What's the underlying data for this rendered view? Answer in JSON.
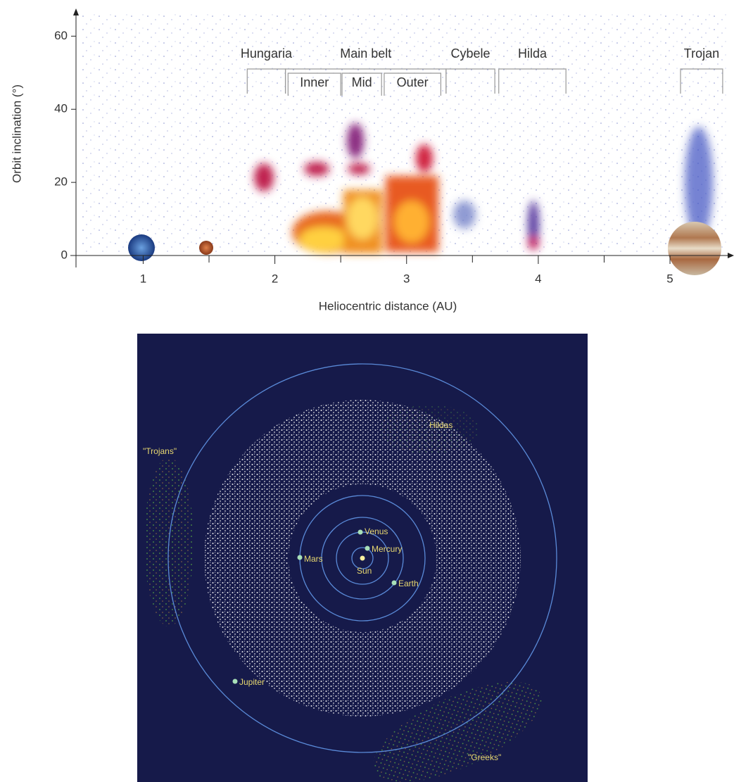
{
  "chart_data": {
    "type": "scatter",
    "ylabel": "Orbit inclination (°)",
    "xlabel": "Heliocentric distance (AU)",
    "xlim": [
      0.49,
      5.47
    ],
    "ylim": [
      0,
      67
    ],
    "xticks": [
      1,
      2,
      3,
      4,
      5
    ],
    "xminorticks": [
      1.5,
      2.5,
      3.5,
      4.5
    ],
    "yticks": [
      0,
      20,
      40,
      60
    ],
    "color": "#2a3aa0",
    "regions": [
      {
        "name": "Hungaria",
        "x": [
          1.79,
          2.08
        ]
      },
      {
        "name": "Main belt",
        "x": [
          2.08,
          3.3
        ],
        "subregions": [
          {
            "name": "Inner",
            "x": [
              2.1,
              2.5
            ]
          },
          {
            "name": "Mid",
            "x": [
              2.51,
              2.81
            ]
          },
          {
            "name": "Outer",
            "x": [
              2.83,
              3.26
            ]
          }
        ]
      },
      {
        "name": "Cybele",
        "x": [
          3.3,
          3.67
        ]
      },
      {
        "name": "Hilda",
        "x": [
          3.7,
          4.21
        ]
      },
      {
        "name": "Trojan",
        "x": [
          5.08,
          5.4
        ]
      }
    ]
  },
  "diagram": {
    "bodies": [
      "Sun",
      "Mercury",
      "Venus",
      "Earth",
      "Mars",
      "Jupiter"
    ],
    "groups": [
      "\"Trojans\"",
      "Hildas",
      "\"Greeks\""
    ]
  }
}
